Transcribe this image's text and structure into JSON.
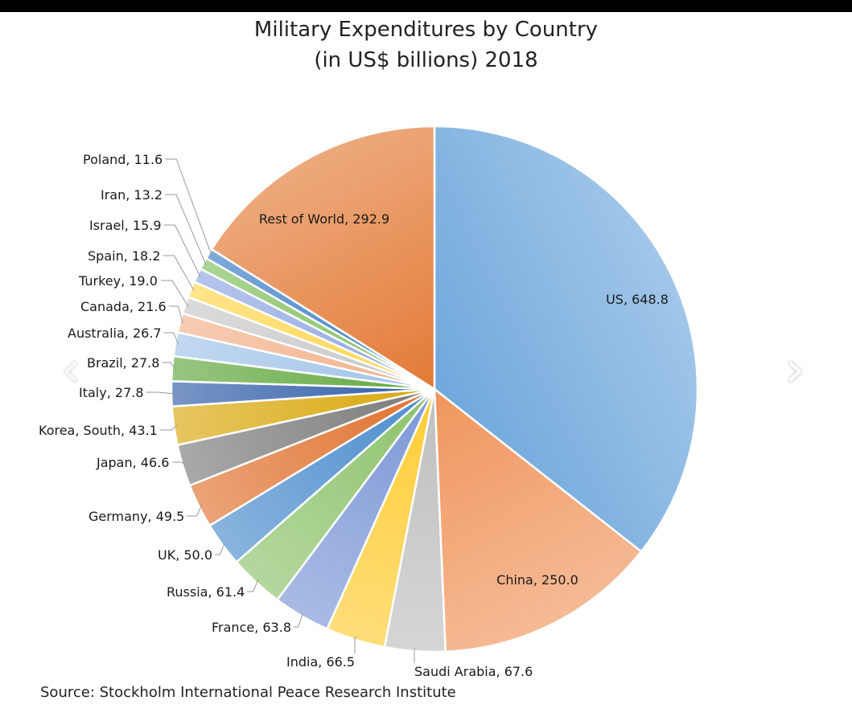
{
  "chart_data": {
    "type": "pie",
    "title": [
      "Military Expenditures by Country",
      "(in US$ billions) 2018"
    ],
    "source": "Source: Stockholm International Peace Research Institute",
    "slices": [
      {
        "label": "US, 648.8",
        "name": "US",
        "value": 648.8,
        "color": "#6fa8dc"
      },
      {
        "label": "China, 250.0",
        "name": "China",
        "value": 250.0,
        "color": "#f0955c"
      },
      {
        "label": "Saudi Arabia, 67.6",
        "name": "Saudi Arabia",
        "value": 67.6,
        "color": "#bfbfbf"
      },
      {
        "label": "India, 66.5",
        "name": "India",
        "value": 66.5,
        "color": "#ffcc33"
      },
      {
        "label": "France, 63.8",
        "name": "France",
        "value": 63.8,
        "color": "#7b97d6"
      },
      {
        "label": "Russia, 61.4",
        "name": "Russia",
        "value": 61.4,
        "color": "#8cc26a"
      },
      {
        "label": "UK, 50.0",
        "name": "UK",
        "value": 50.0,
        "color": "#4a8ccc"
      },
      {
        "label": "Germany, 49.5",
        "name": "Germany",
        "value": 49.5,
        "color": "#e0712e"
      },
      {
        "label": "Japan, 46.6",
        "name": "Japan",
        "value": 46.6,
        "color": "#7a7a7a"
      },
      {
        "label": "Korea, South, 43.1",
        "name": "Korea, South",
        "value": 43.1,
        "color": "#d9a70c"
      },
      {
        "label": "Italy, 27.8",
        "name": "Italy",
        "value": 27.8,
        "color": "#2f5da8"
      },
      {
        "label": "Brazil, 27.8",
        "name": "Brazil",
        "value": 27.8,
        "color": "#5fa83d"
      },
      {
        "label": "Australia, 26.7",
        "name": "Australia",
        "value": 26.7,
        "color": "#9fc3e8"
      },
      {
        "label": "Canada, 21.6",
        "name": "Canada",
        "value": 21.6,
        "color": "#f2b08a"
      },
      {
        "label": "Turkey, 19.0",
        "name": "Turkey",
        "value": 19.0,
        "color": "#c8c8c8"
      },
      {
        "label": "Spain, 18.2",
        "name": "Spain",
        "value": 18.2,
        "color": "#ffd54d"
      },
      {
        "label": "Israel, 15.9",
        "name": "Israel",
        "value": 15.9,
        "color": "#8ea6e0"
      },
      {
        "label": "Iran, 13.2",
        "name": "Iran",
        "value": 13.2,
        "color": "#7fbf5a"
      },
      {
        "label": "Poland, 11.6",
        "name": "Poland",
        "value": 11.6,
        "color": "#3a7cc4"
      },
      {
        "label": "Rest of World, 292.9",
        "name": "Rest of World",
        "value": 292.9,
        "color": "#e37a36"
      }
    ]
  },
  "navigation": {
    "prev_glyph": "‹",
    "next_glyph": "›"
  }
}
